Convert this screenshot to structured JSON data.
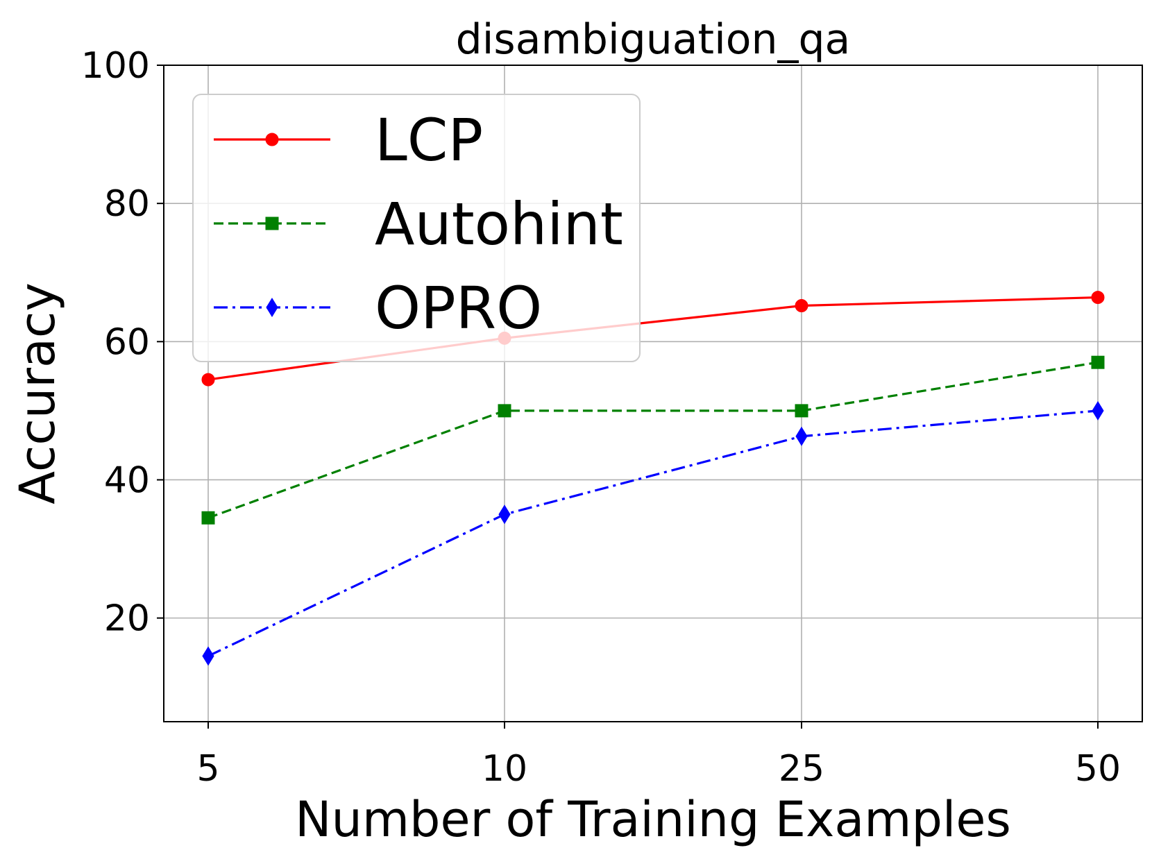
{
  "chart_data": {
    "type": "line",
    "title": "disambiguation_qa",
    "xlabel": "Number of Training Examples",
    "ylabel": "Accuracy",
    "categories": [
      "5",
      "10",
      "25",
      "50"
    ],
    "ylim": [
      5,
      100
    ],
    "yticks": [
      20,
      40,
      60,
      80,
      100
    ],
    "ytick_labels": [
      "20",
      "40",
      "60",
      "80",
      "100"
    ],
    "grid": true,
    "legend_position": "upper-left",
    "series": [
      {
        "name": "LCP",
        "values": [
          54.5,
          60.5,
          65.2,
          66.4
        ],
        "color": "#ff0000",
        "marker": "circle",
        "line_style": "solid"
      },
      {
        "name": "Autohint",
        "values": [
          34.5,
          50.0,
          50.0,
          57.0
        ],
        "color": "#008000",
        "marker": "square",
        "line_style": "dashed"
      },
      {
        "name": "OPRO",
        "values": [
          14.5,
          35.0,
          46.3,
          50.0
        ],
        "color": "#0000ff",
        "marker": "diamond",
        "line_style": "dash-dot"
      }
    ]
  }
}
